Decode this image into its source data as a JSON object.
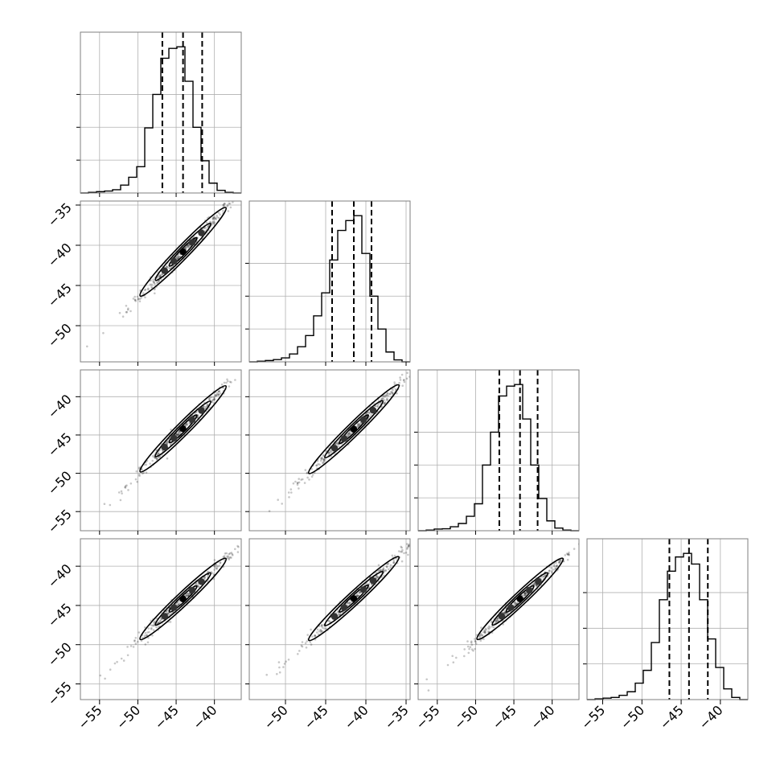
{
  "chart_data": {
    "type": "corner",
    "n_params": 4,
    "grid": true,
    "quantile_style": "dashed",
    "colors": {
      "hist": "#000000",
      "points": "#000000",
      "frame": "#7f7f7f",
      "grid": "#b0b0b0"
    },
    "params": [
      {
        "index": 0,
        "range": [
          -57.5,
          -36.5
        ],
        "ticks": [
          -55,
          -50,
          -45,
          -40
        ],
        "tick_labels": [
          "−55",
          "−50",
          "−45",
          "−40"
        ],
        "quantiles": [
          -46.8,
          -44.1,
          -41.6
        ]
      },
      {
        "index": 1,
        "range": [
          -54.5,
          -34.5
        ],
        "ticks": [
          -50,
          -45,
          -40,
          -35
        ],
        "tick_labels": [
          "−50",
          "−45",
          "−40",
          "−35"
        ],
        "quantiles": [
          -44.2,
          -41.5,
          -39.3
        ]
      },
      {
        "index": 2,
        "range": [
          -57.5,
          -36.5
        ],
        "ticks": [
          -55,
          -50,
          -45,
          -40
        ],
        "tick_labels": [
          "−55",
          "−50",
          "−45",
          "−40"
        ],
        "quantiles": [
          -46.9,
          -44.2,
          -41.9
        ]
      },
      {
        "index": 3,
        "range": [
          -57.0,
          -36.5
        ],
        "ticks": [
          -55,
          -50,
          -45,
          -40
        ],
        "tick_labels": [
          "−55",
          "−50",
          "−45",
          "−40"
        ],
        "quantiles": [
          -46.5,
          -44.0,
          -41.6
        ]
      }
    ],
    "histograms": [
      {
        "param": 0,
        "bin_edges": [
          -57.5,
          -56.45,
          -55.4,
          -54.35,
          -53.3,
          -52.25,
          -51.2,
          -50.15,
          -49.1,
          -48.05,
          -47.0,
          -45.95,
          -44.9,
          -43.85,
          -42.8,
          -41.75,
          -40.7,
          -39.65,
          -38.6,
          -37.55,
          -36.5
        ],
        "counts": [
          0,
          2,
          4,
          6,
          10,
          24,
          48,
          80,
          198,
          300,
          410,
          440,
          445,
          340,
          200,
          98,
          30,
          8,
          2,
          0
        ]
      },
      {
        "param": 1,
        "bin_edges": [
          -54.5,
          -53.5,
          -52.5,
          -51.5,
          -50.5,
          -49.5,
          -48.5,
          -47.5,
          -46.5,
          -45.5,
          -44.5,
          -43.5,
          -42.5,
          -41.5,
          -40.5,
          -39.5,
          -38.5,
          -37.5,
          -36.5,
          -35.5,
          -34.5
        ],
        "counts": [
          0,
          2,
          4,
          7,
          12,
          24,
          46,
          80,
          140,
          210,
          310,
          400,
          430,
          445,
          330,
          200,
          100,
          30,
          6,
          0
        ]
      },
      {
        "param": 2,
        "bin_edges": [
          -57.5,
          -56.45,
          -55.4,
          -54.35,
          -53.3,
          -52.25,
          -51.2,
          -50.15,
          -49.1,
          -48.05,
          -47.0,
          -45.95,
          -44.9,
          -43.85,
          -42.8,
          -41.75,
          -40.7,
          -39.65,
          -38.6,
          -37.55,
          -36.5
        ],
        "counts": [
          0,
          2,
          5,
          6,
          12,
          22,
          44,
          82,
          200,
          300,
          410,
          440,
          445,
          340,
          200,
          98,
          30,
          8,
          2,
          0
        ]
      },
      {
        "param": 3,
        "bin_edges": [
          -57.0,
          -55.975,
          -54.95,
          -53.925,
          -52.9,
          -51.875,
          -50.85,
          -49.825,
          -48.8,
          -47.775,
          -46.75,
          -45.725,
          -44.7,
          -43.675,
          -42.65,
          -41.625,
          -40.6,
          -39.575,
          -38.55,
          -37.525,
          -36.5
        ],
        "counts": [
          0,
          2,
          4,
          6,
          12,
          22,
          46,
          82,
          160,
          280,
          360,
          400,
          410,
          380,
          280,
          170,
          90,
          30,
          6,
          0
        ]
      }
    ],
    "pairs": [
      {
        "x_param": 0,
        "y_param": 1,
        "slope": 0.98,
        "offset": 2.4
      },
      {
        "x_param": 0,
        "y_param": 2,
        "slope": 1.0,
        "offset": -0.1
      },
      {
        "x_param": 1,
        "y_param": 2,
        "slope": 1.03,
        "offset": -1.5
      },
      {
        "x_param": 0,
        "y_param": 3,
        "slope": 0.92,
        "offset": -3.6
      },
      {
        "x_param": 1,
        "y_param": 3,
        "slope": 0.95,
        "offset": -4.7
      },
      {
        "x_param": 2,
        "y_param": 3,
        "slope": 0.92,
        "offset": -3.5
      }
    ]
  }
}
